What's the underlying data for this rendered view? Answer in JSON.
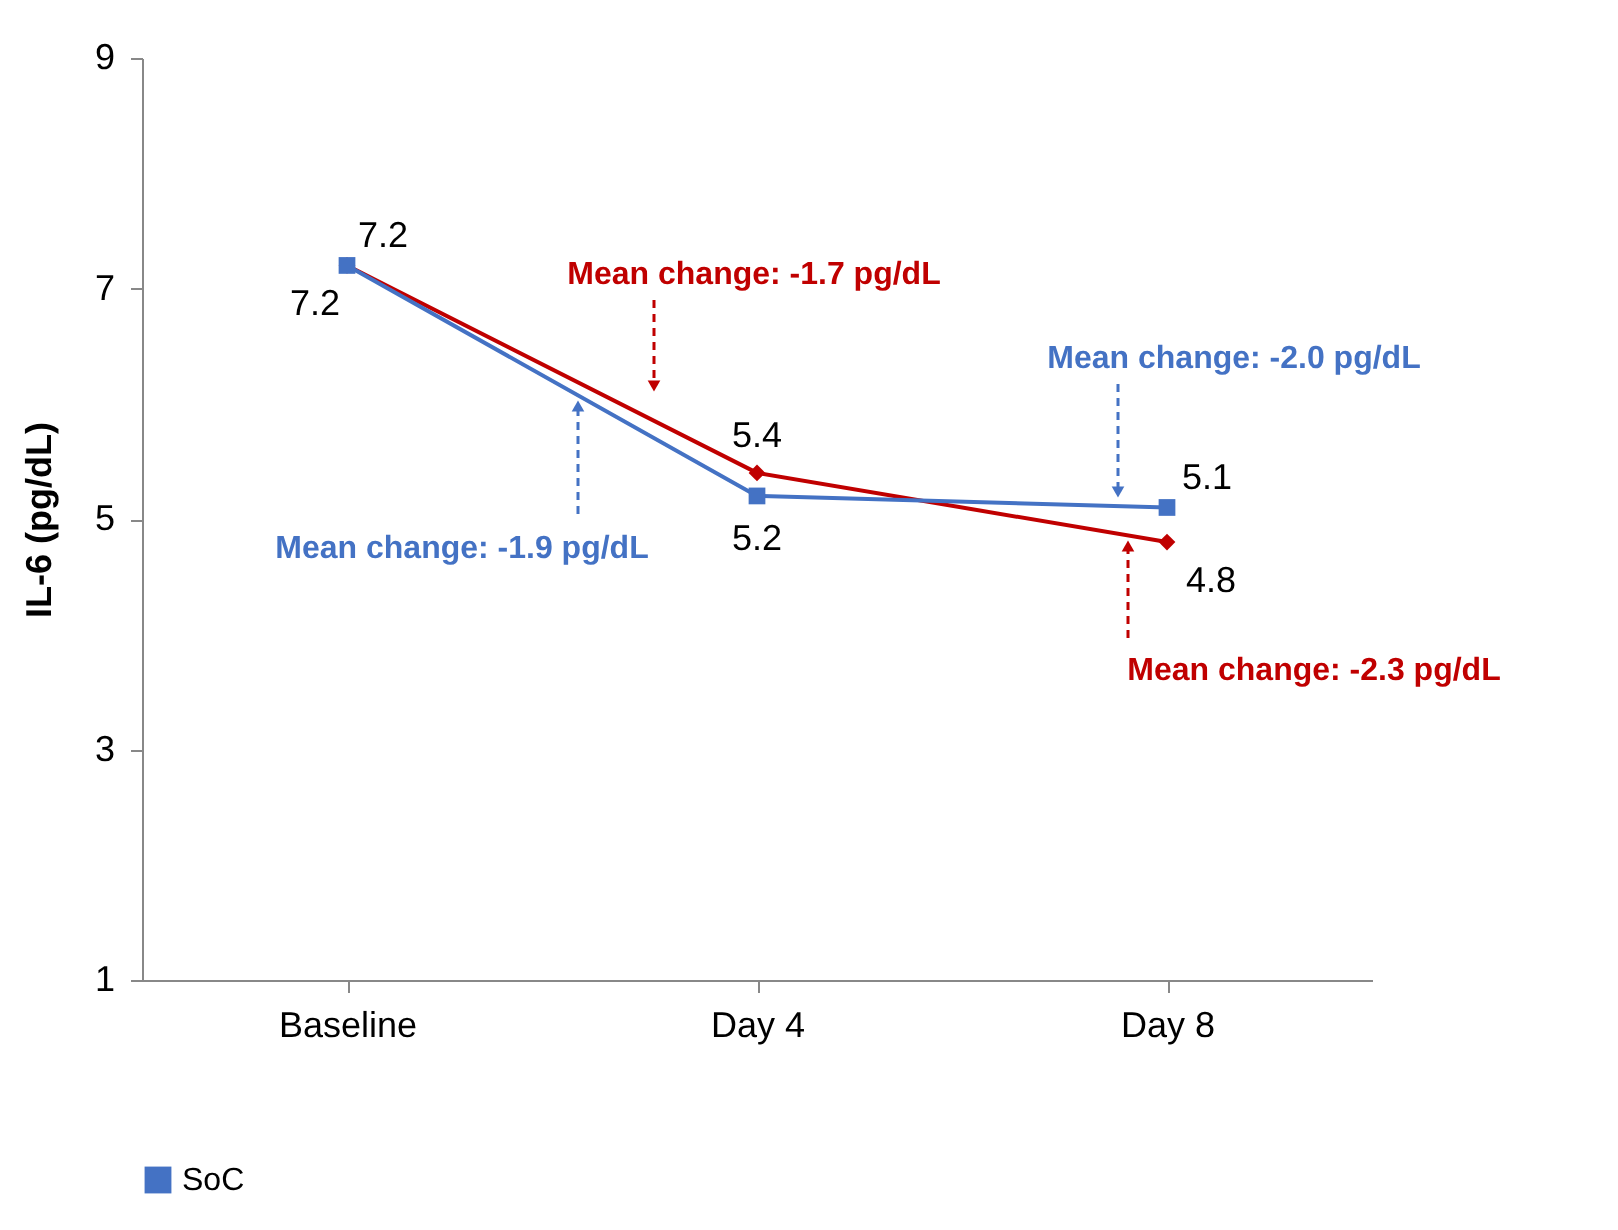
{
  "chart_data": {
    "type": "line",
    "ylabel": "IL-6 (pg/dL)",
    "categories": [
      "Baseline",
      "Day 4",
      "Day 8"
    ],
    "series": [
      {
        "color": "#c00000",
        "marker": "diamond",
        "values": [
          7.2,
          5.4,
          4.8
        ]
      },
      {
        "name": "SoC",
        "color": "#4472c4",
        "marker": "square",
        "values": [
          7.2,
          5.2,
          5.1
        ]
      }
    ],
    "ylim": [
      1,
      9
    ],
    "yticks": [
      1,
      3,
      5,
      7,
      9
    ],
    "data_labels": true,
    "legend": "bottom",
    "grid": false,
    "annotations": [
      "Mean change: -1.7 pg/dL",
      "Mean change: -1.9 pg/dL",
      "Mean change: -2.0 pg/dL",
      "Mean change: -2.3 pg/dL"
    ]
  }
}
